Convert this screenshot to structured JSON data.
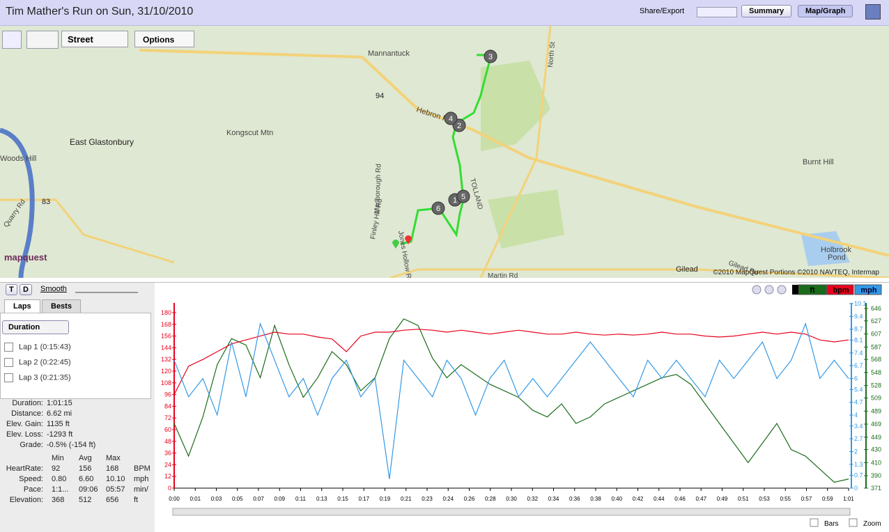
{
  "header": {
    "title": "Tim Mather's Run on Sun, 31/10/2010",
    "share": "Share/Export",
    "tabs": [
      "Summary",
      "Map/Graph"
    ]
  },
  "map": {
    "style": "Street",
    "options": "Options",
    "labels": [
      "Mannantuck",
      "Hebron Rd",
      "94",
      "Kongscut Mtn",
      "East Glastonbury",
      "Woods Hill",
      "83",
      "Quarry Rd",
      "Marlborough Rd",
      "Finley Hill Rd",
      "Jones Hollow Rd",
      "TOLLAND",
      "North St",
      "Burnt Hill",
      "Holbrook",
      "Pond",
      "Gilead",
      "Gilead Rd",
      "Martin Rd"
    ],
    "markers": [
      "1",
      "2",
      "3",
      "4",
      "5",
      "6"
    ],
    "brand": "mapquest",
    "copyright": "©2010 MapQuest  Portions ©2010 NAVTEQ, Intermap"
  },
  "controls": {
    "t": "T",
    "d": "D",
    "smooth": "Smooth",
    "tabs": [
      "Laps",
      "Bests"
    ],
    "sort": "Duration",
    "laps": [
      "Lap 1 (0:15:43)",
      "Lap 2 (0:22:45)",
      "Lap 3 (0:21:35)"
    ]
  },
  "summary": {
    "rows": [
      [
        "Duration:",
        "1:01:15"
      ],
      [
        "Distance:",
        "6.62 mi"
      ],
      [
        "Elev. Gain:",
        "1135 ft"
      ],
      [
        "Elev. Loss:",
        "-1293 ft"
      ],
      [
        "Grade:",
        "-0.5% (-154 ft)"
      ]
    ],
    "columns": [
      "Min",
      "Avg",
      "Max"
    ],
    "metrics": [
      [
        "HeartRate:",
        "92",
        "156",
        "168",
        "BPM"
      ],
      [
        "Speed:",
        "0.80",
        "6.60",
        "10.10",
        "mph"
      ],
      [
        "Pace:",
        "1:1...",
        "09:06",
        "05:57",
        "min/"
      ],
      [
        "Elevation:",
        "368",
        "512",
        "656",
        "ft"
      ]
    ]
  },
  "graph": {
    "type": "line",
    "x_ticks": [
      "0:00",
      "0:01",
      "0:03",
      "0:05",
      "0:07",
      "0:09",
      "0:11",
      "0:13",
      "0:15",
      "0:17",
      "0:19",
      "0:21",
      "0:23",
      "0:24",
      "0:26",
      "0:28",
      "0:30",
      "0:32",
      "0:34",
      "0:36",
      "0:38",
      "0:40",
      "0:42",
      "0:44",
      "0:46",
      "0:47",
      "0:49",
      "0:51",
      "0:53",
      "0:55",
      "0:57",
      "0:59",
      "1:01"
    ],
    "series": [
      {
        "name": "ft",
        "color": "#1a6b1a",
        "axis": "y3",
        "values": [
          470,
          420,
          480,
          560,
          600,
          590,
          540,
          620,
          560,
          510,
          540,
          580,
          560,
          520,
          540,
          600,
          630,
          620,
          570,
          540,
          560,
          545,
          530,
          520,
          510,
          490,
          480,
          500,
          470,
          480,
          500,
          510,
          520,
          530,
          540,
          545,
          530,
          500,
          470,
          440,
          410,
          440,
          470,
          430,
          420,
          400,
          380,
          385
        ]
      },
      {
        "name": "bpm",
        "color": "#e8001c",
        "axis": "y",
        "values": [
          96,
          125,
          132,
          140,
          148,
          152,
          156,
          160,
          158,
          158,
          155,
          153,
          140,
          156,
          160,
          160,
          162,
          163,
          162,
          160,
          162,
          160,
          158,
          160,
          162,
          160,
          158,
          158,
          160,
          158,
          157,
          158,
          157,
          158,
          160,
          158,
          158,
          156,
          155,
          156,
          158,
          160,
          158,
          160,
          158,
          152,
          150,
          152
        ]
      },
      {
        "name": "mph",
        "color": "#3399e6",
        "axis": "y2",
        "values": [
          7,
          5,
          6,
          4,
          8,
          5,
          9,
          7,
          5,
          6,
          4,
          6,
          7,
          5,
          6,
          0.5,
          7,
          6,
          5,
          7,
          6,
          4,
          6,
          7,
          5,
          6,
          5,
          6,
          7,
          8,
          7,
          6,
          5,
          7,
          6,
          7,
          6,
          5,
          7,
          6,
          7,
          8,
          6,
          7,
          9,
          6,
          7,
          6
        ]
      }
    ],
    "ylim": [
      0,
      180
    ],
    "yticks": [
      0,
      12,
      24,
      36,
      48,
      60,
      72,
      84,
      96,
      108,
      120,
      132,
      144,
      156,
      168,
      180
    ],
    "y2lim": [
      0,
      10.1
    ],
    "y2ticks": [
      0,
      0.7,
      1.3,
      2.0,
      2.7,
      3.4,
      4.0,
      4.7,
      5.4,
      6.0,
      6.7,
      7.4,
      8.1,
      8.7,
      9.4,
      10.1
    ],
    "y3lim": [
      371,
      646
    ],
    "y3ticks": [
      371,
      390,
      410,
      430,
      449,
      469,
      489,
      509,
      528,
      548,
      568,
      587,
      607,
      627,
      646
    ]
  },
  "footer": {
    "bars": "Bars",
    "zoom": "Zoom"
  }
}
